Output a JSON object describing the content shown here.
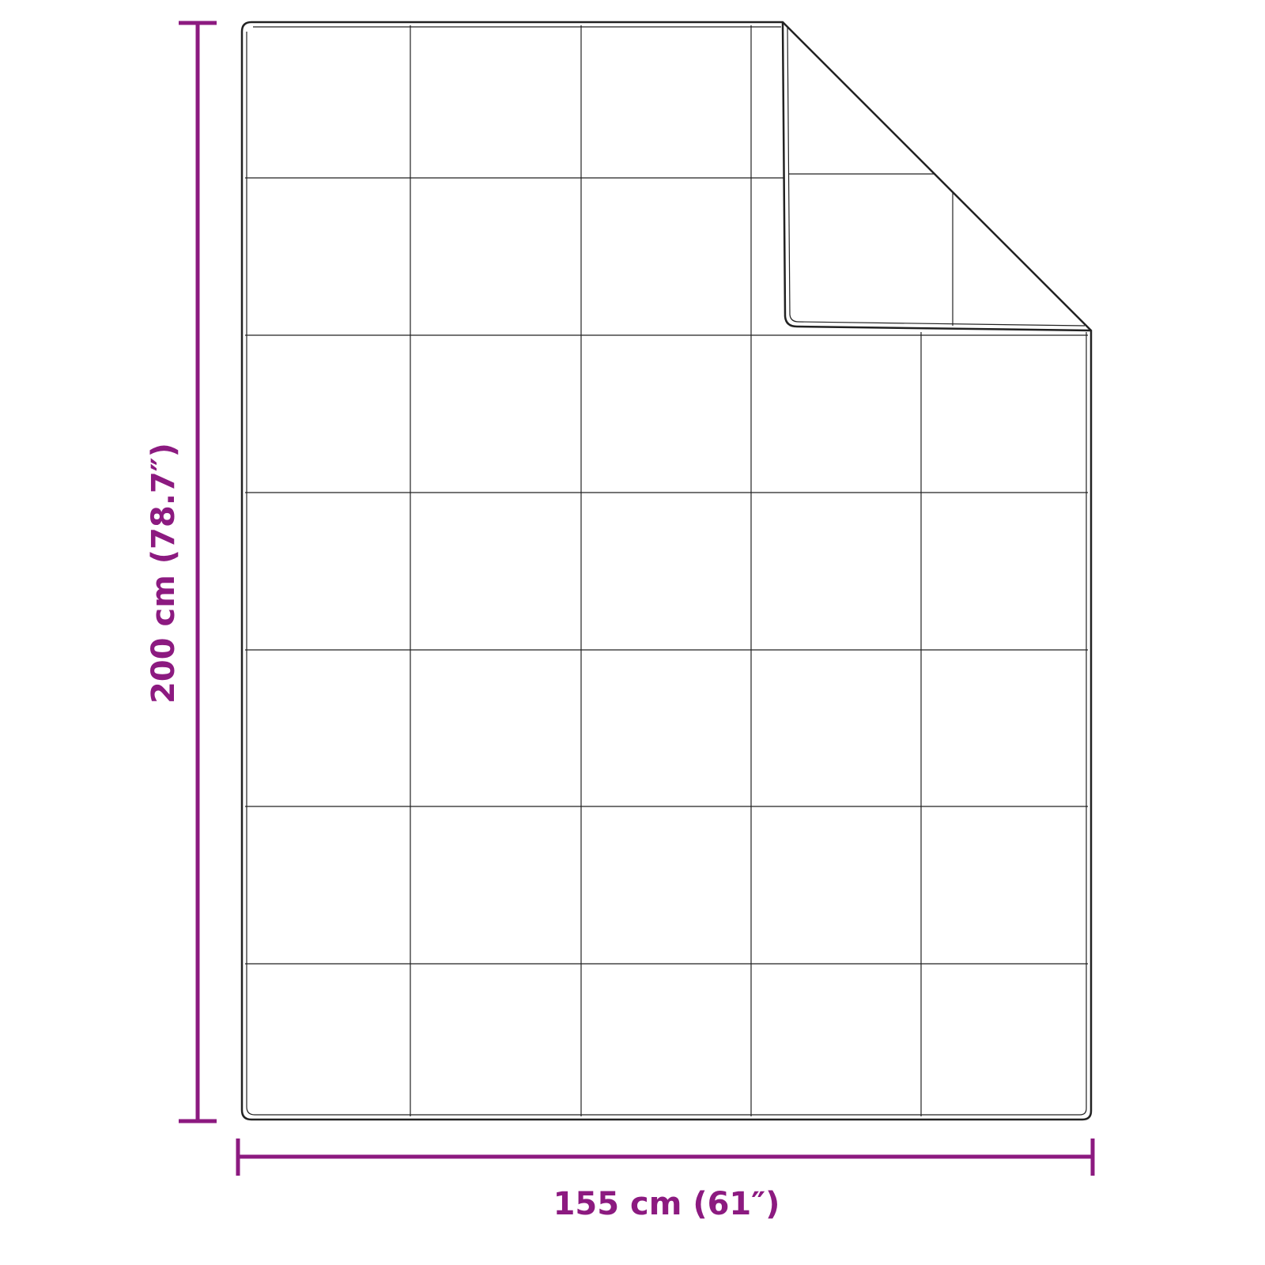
{
  "dimensions": {
    "height_label": "200 cm (78.7″)",
    "width_label": "155 cm (61″)"
  },
  "colors": {
    "dimension": "#8c1a80",
    "outline": "#222222",
    "background": "#ffffff"
  }
}
